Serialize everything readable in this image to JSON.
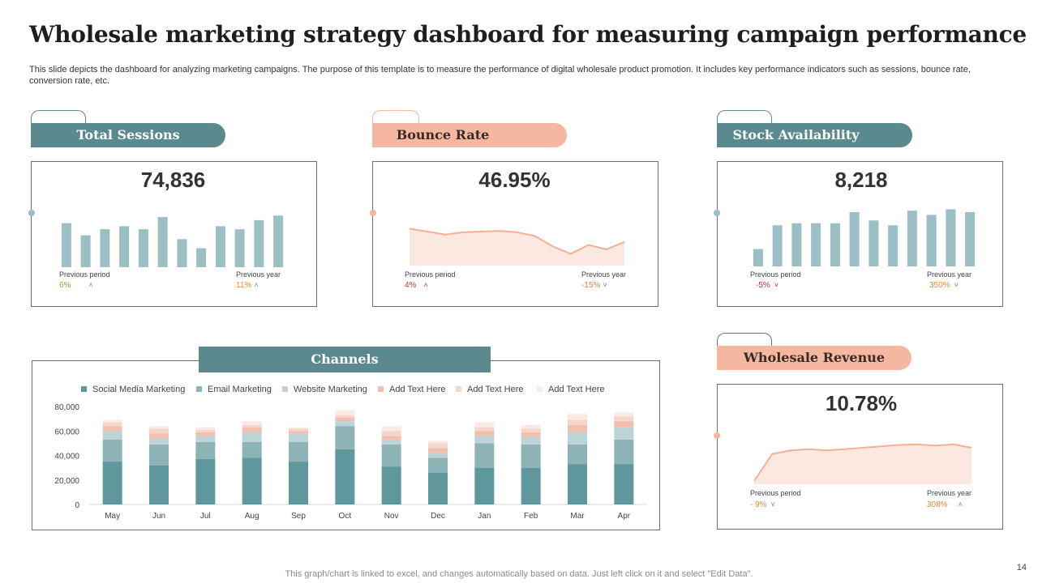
{
  "title": "Wholesale marketing strategy dashboard for measuring campaign performance",
  "description": "This slide depicts the dashboard for analyzing marketing campaigns. The purpose of this template is to measure the performance of digital wholesale product promotion. It includes key performance indicators such as sessions, bounce rate, conversion rate, etc.",
  "colors": {
    "teal": "#5b8a8e",
    "salmon": "#f4b8a0",
    "bar_light": "#9bbfc2",
    "green_down": "#c0392b"
  },
  "cards": {
    "sessions": {
      "title": "Total Sessions",
      "value": "74,836",
      "prev_period_label": "Previous period",
      "prev_period_value": "6%",
      "prev_year_label": "Previous year",
      "prev_year_value": "11%"
    },
    "bounce": {
      "title": "Bounce Rate",
      "value": "46.95%",
      "prev_period_label": "Previous period",
      "prev_period_value": "4%",
      "prev_year_label": "Previous year",
      "prev_year_value": "-15%"
    },
    "stock": {
      "title": "Stock Availability",
      "value": "8,218",
      "prev_period_label": "Previous period",
      "prev_period_value": "-5%",
      "prev_year_label": "Previous year",
      "prev_year_value": "350%"
    },
    "revenue": {
      "title": "Wholesale Revenue",
      "value": "10.78%",
      "prev_period_label": "Previous period",
      "prev_period_value": "- 9%",
      "prev_year_label": "Previous year",
      "prev_year_value": "308%"
    }
  },
  "channels_title": "Channels",
  "footer": "This graph/chart is linked to excel,  and changes automatically based on data. Just left click on it and select \"Edit Data\".",
  "page_number": "14",
  "chart_data": [
    {
      "id": "sessions",
      "type": "bar",
      "values": [
        58,
        42,
        50,
        54,
        50,
        66,
        37,
        25,
        54,
        50,
        62,
        68
      ],
      "ylim": [
        0,
        80
      ]
    },
    {
      "id": "bounce",
      "type": "area",
      "values": [
        50,
        46,
        42,
        45,
        46,
        47,
        45,
        40,
        26,
        16,
        28,
        22,
        32
      ],
      "ylim": [
        0,
        80
      ]
    },
    {
      "id": "stock",
      "type": "bar",
      "values": [
        25,
        59,
        62,
        62,
        62,
        78,
        66,
        59,
        80,
        74,
        82,
        78
      ],
      "ylim": [
        0,
        100
      ]
    },
    {
      "id": "revenue",
      "type": "area",
      "values": [
        5,
        44,
        49,
        51,
        49,
        51,
        53,
        55,
        57,
        58,
        56,
        58,
        53
      ],
      "ylim": [
        0,
        80
      ]
    },
    {
      "id": "channels",
      "type": "bar",
      "stacked": true,
      "title": "Channels",
      "categories": [
        "May",
        "Jun",
        "Jul",
        "Aug",
        "Sep",
        "Oct",
        "Nov",
        "Dec",
        "Jan",
        "Feb",
        "Mar",
        "Apr"
      ],
      "ylim": [
        0,
        80000
      ],
      "yticks": [
        "0",
        "20,000",
        "40,000",
        "60,000",
        "80,000"
      ],
      "series": [
        {
          "name": "Social Media Marketing",
          "color": "#5e979c",
          "values": [
            35000,
            32000,
            37000,
            38000,
            35000,
            45000,
            31000,
            26000,
            30000,
            30000,
            33000,
            33000
          ]
        },
        {
          "name": "Email  Marketing",
          "color": "#8eb3b6",
          "values": [
            18000,
            17000,
            14000,
            13000,
            16000,
            19000,
            18000,
            12000,
            20000,
            19000,
            16000,
            20000
          ]
        },
        {
          "name": "Website Marketing",
          "color": "#bdd3d5",
          "values": [
            7000,
            5000,
            5000,
            8000,
            7000,
            4000,
            4000,
            4000,
            6000,
            6000,
            10000,
            10000
          ]
        },
        {
          "name": "Add Text Here",
          "color": "#f1bfae",
          "values": [
            4000,
            4000,
            3000,
            4000,
            2000,
            3000,
            3000,
            4000,
            4000,
            4000,
            6000,
            5000
          ]
        },
        {
          "name": "Add Text Here",
          "color": "#f7d6ca",
          "values": [
            3000,
            4000,
            2000,
            2000,
            2000,
            2000,
            4000,
            4000,
            3000,
            3000,
            4000,
            4000
          ]
        },
        {
          "name": "Add Text Here",
          "color": "#fbeae3",
          "values": [
            2000,
            2000,
            2000,
            3000,
            1000,
            4000,
            4000,
            2000,
            4000,
            3000,
            5000,
            3000
          ]
        }
      ]
    }
  ]
}
